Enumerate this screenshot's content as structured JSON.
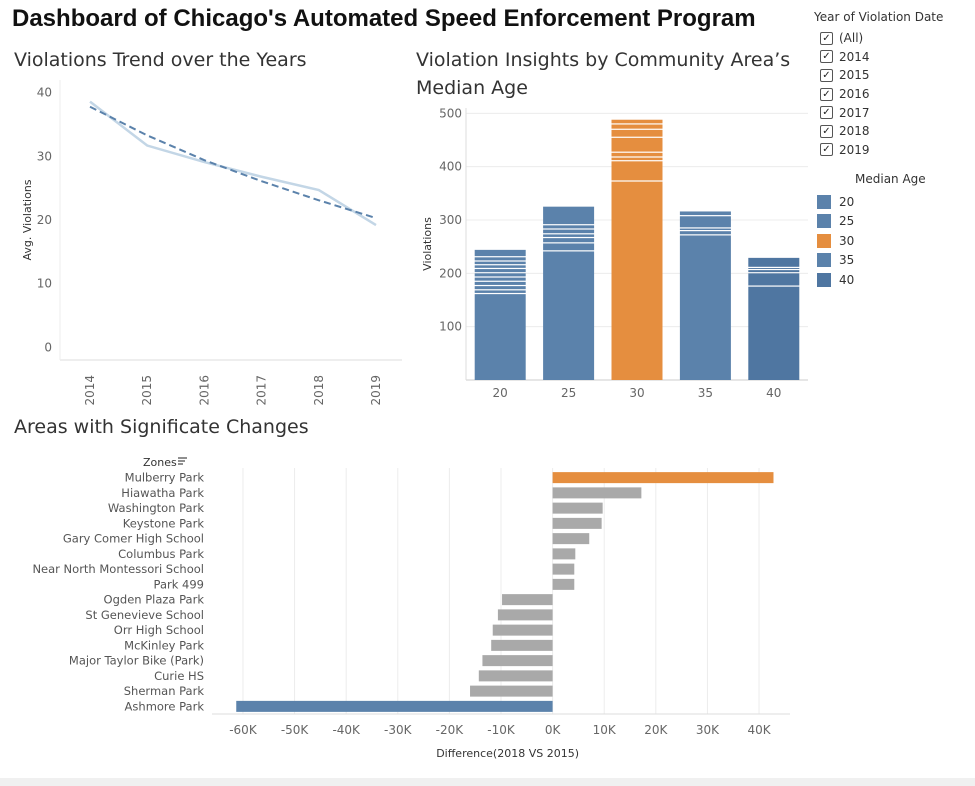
{
  "page": {
    "title": "Dashboard of Chicago's Automated Speed Enforcement Program"
  },
  "colors": {
    "blue": "#5b82ab",
    "orange": "#e58e3f",
    "gray": "#a9a9a9",
    "trend_line": "#c3d6e6",
    "dashed": "#5b82ab"
  },
  "filter": {
    "title": "Year of Violation Date",
    "options": [
      {
        "label": "(All)",
        "checked": true
      },
      {
        "label": "2014",
        "checked": true
      },
      {
        "label": "2015",
        "checked": true
      },
      {
        "label": "2016",
        "checked": true
      },
      {
        "label": "2017",
        "checked": true
      },
      {
        "label": "2018",
        "checked": true
      },
      {
        "label": "2019",
        "checked": true
      }
    ]
  },
  "legend": {
    "title": "Median Age",
    "items": [
      {
        "label": "20",
        "color": "#5b82ab"
      },
      {
        "label": "25",
        "color": "#5b82ab"
      },
      {
        "label": "30",
        "color": "#e58e3f"
      },
      {
        "label": "35",
        "color": "#5b82ab"
      },
      {
        "label": "40",
        "color": "#4f76a1"
      }
    ]
  },
  "chart_data": [
    {
      "type": "line",
      "title": "Violations Trend over the Years",
      "xlabel": "",
      "ylabel": "Avg. Violations",
      "x": [
        "2014",
        "2015",
        "2016",
        "2017",
        "2018",
        "2019"
      ],
      "series": [
        {
          "values": [
            38.6,
            31.7,
            29.1,
            26.8,
            24.7,
            19.2
          ]
        },
        {
          "values": [
            37.8,
            33.3,
            29.4,
            26.1,
            23.1,
            20.3
          ],
          "style": "dashed trend"
        }
      ],
      "yticks": [
        0,
        10,
        20,
        30,
        40
      ],
      "ylim": [
        -2,
        42
      ],
      "grid": false
    },
    {
      "type": "bar",
      "title": "Violation Insights by Community Area’s Median Age",
      "xlabel": "",
      "ylabel": "Violations",
      "categories": [
        "20",
        "25",
        "30",
        "35",
        "40"
      ],
      "values": [
        244,
        325,
        488,
        316,
        229
      ],
      "segment_lines": [
        [
          161,
          168,
          176,
          184,
          192,
          200,
          208,
          215,
          222,
          230,
          244
        ],
        [
          241,
          256,
          266,
          273,
          282,
          290,
          325
        ],
        [
          372,
          410,
          417,
          426,
          454,
          469,
          479,
          488
        ],
        [
          271,
          279,
          284,
          307,
          316
        ],
        [
          175,
          200,
          206,
          210,
          229
        ]
      ],
      "highlight_category": "30",
      "yticks": [
        100,
        200,
        300,
        400,
        500
      ],
      "ylim": [
        0,
        510
      ],
      "grid": true
    },
    {
      "type": "bar",
      "orientation": "horizontal",
      "title": "Areas with Significate Changes",
      "xlabel": "Difference(2018 VS 2015)",
      "ylabel": "Zones",
      "categories": [
        "Mulberry Park",
        "Hiawatha Park",
        "Washington Park",
        "Keystone Park",
        "Gary Comer High School",
        "Columbus Park",
        "Near North Montessori School",
        "Park 499",
        "Ogden Plaza Park",
        "St Genevieve School",
        "Orr High School",
        "McKinley Park",
        "Major Taylor Bike (Park)",
        "Curie HS",
        "Sherman Park",
        "Ashmore Park"
      ],
      "values": [
        42800,
        17200,
        9700,
        9500,
        7100,
        4400,
        4200,
        4200,
        -9800,
        -10600,
        -11600,
        -11900,
        -13600,
        -14300,
        -16000,
        -61300
      ],
      "xticks": [
        -60000,
        -50000,
        -40000,
        -30000,
        -20000,
        -10000,
        0,
        10000,
        20000,
        30000,
        40000
      ],
      "xtick_labels": [
        "-60K",
        "-50K",
        "-40K",
        "-30K",
        "-20K",
        "-10K",
        "0K",
        "10K",
        "20K",
        "30K",
        "40K"
      ],
      "xlim": [
        -66000,
        46000
      ],
      "grid": true
    }
  ]
}
